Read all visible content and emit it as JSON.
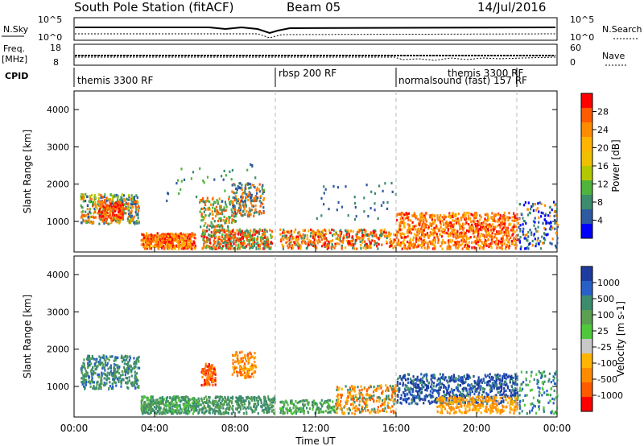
{
  "header": {
    "title": "South Pole Station (fitACF)",
    "beam": "Beam 05",
    "date": "14/Jul/2016"
  },
  "labels": {
    "nsky": "N.Sky",
    "nsky_top": "10^5",
    "nsky_bottom": "10^0",
    "nsearch": "N.Search",
    "nsearch_top": "10^5",
    "nsearch_bottom": "10^0",
    "freq_line1": "Freq.",
    "freq_line2": "[MHz]",
    "freq_top": "18",
    "freq_bottom": "8",
    "nave": "Nave",
    "nave_top": "60",
    "nave_bottom": "0",
    "cpid": "CPID"
  },
  "cpid_segments": [
    {
      "start_hour": 0,
      "end_hour": 10,
      "label": "themis 3300 RF"
    },
    {
      "start_hour": 10,
      "end_hour": 16,
      "label": "rbsp 200 RF"
    },
    {
      "start_hour": 16,
      "end_hour": 22,
      "label": "normalsound (fast) 157 RF"
    },
    {
      "start_hour": 18,
      "end_hour": 22,
      "label": "themis 3300 RF"
    }
  ],
  "chart_data": [
    {
      "type": "heatmap",
      "ylabel": "Slant Range [km]",
      "xlabel": "",
      "x_ticks": [
        "00:00",
        "04:00",
        "08:00",
        "12:00",
        "16:00",
        "20:00",
        "00:00"
      ],
      "y_ticks": [
        1000,
        2000,
        3000,
        4000
      ],
      "xlim_hours": [
        0,
        24
      ],
      "ylim_km": [
        180,
        4500
      ],
      "colorbar": {
        "label": "Power [dB]",
        "ticks": [
          "28",
          "24",
          "20",
          "16",
          "12",
          "8",
          "4"
        ],
        "colors": [
          "#ff0000",
          "#ff5a00",
          "#ff8c00",
          "#ffb400",
          "#f0c000",
          "#b4c800",
          "#50b43c",
          "#3c8c6e",
          "#2d5aa0",
          "#0000ff"
        ]
      },
      "dashed_lines_hours": [
        10,
        16,
        22
      ]
    },
    {
      "type": "heatmap",
      "ylabel": "Slant Range [km]",
      "xlabel": "Time UT",
      "x_ticks": [
        "00:00",
        "04:00",
        "08:00",
        "12:00",
        "16:00",
        "20:00",
        "00:00"
      ],
      "y_ticks": [
        1000,
        2000,
        3000,
        4000
      ],
      "xlim_hours": [
        0,
        24
      ],
      "ylim_km": [
        180,
        4500
      ],
      "colorbar": {
        "label": "Velocity [m s-1]",
        "ticks": [
          "1000",
          "500",
          "100",
          "25",
          "-25",
          "-100",
          "-500",
          "-1000"
        ],
        "colors": [
          "#1e3ca0",
          "#2860c8",
          "#3c8c6e",
          "#5aa050",
          "#50c83c",
          "#c8c8c8",
          "#ffb400",
          "#ff8c00",
          "#ff5a00",
          "#ff0000"
        ]
      },
      "dashed_lines_hours": [
        10,
        16,
        22
      ]
    }
  ]
}
